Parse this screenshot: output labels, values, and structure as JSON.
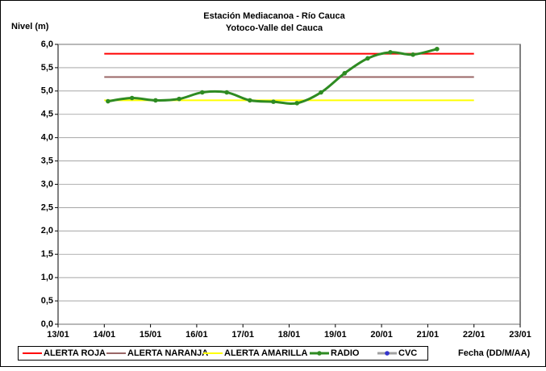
{
  "chart_data": {
    "type": "line",
    "title": "Estación Mediacanoa - Río Cauca",
    "subtitle": "Yotoco-Valle del Cauca",
    "y_label": "Nivel (m)",
    "x_label": "Fecha (DD/M/AA)",
    "xlim": [
      13,
      23
    ],
    "xticks": [
      {
        "value": 13,
        "label": "13/01"
      },
      {
        "value": 14,
        "label": "14/01"
      },
      {
        "value": 15,
        "label": "15/01"
      },
      {
        "value": 16,
        "label": "16/01"
      },
      {
        "value": 17,
        "label": "17/01"
      },
      {
        "value": 18,
        "label": "18/01"
      },
      {
        "value": 19,
        "label": "19/01"
      },
      {
        "value": 20,
        "label": "20/01"
      },
      {
        "value": 21,
        "label": "21/01"
      },
      {
        "value": 22,
        "label": "22/01"
      },
      {
        "value": 23,
        "label": "23/01"
      }
    ],
    "ylim": [
      0,
      6
    ],
    "yticks": [
      {
        "value": 0,
        "label": "0,0"
      },
      {
        "value": 0.5,
        "label": "0,5"
      },
      {
        "value": 1,
        "label": "1,0"
      },
      {
        "value": 1.5,
        "label": "1,5"
      },
      {
        "value": 2,
        "label": "2,0"
      },
      {
        "value": 2.5,
        "label": "2,5"
      },
      {
        "value": 3,
        "label": "3,0"
      },
      {
        "value": 3.5,
        "label": "3,5"
      },
      {
        "value": 4,
        "label": "4,0"
      },
      {
        "value": 4.5,
        "label": "4,5"
      },
      {
        "value": 5,
        "label": "5,0"
      },
      {
        "value": 5.5,
        "label": "5,5"
      },
      {
        "value": 6,
        "label": "6,0"
      }
    ],
    "grid": true,
    "legend": "bottom",
    "series": [
      {
        "name": "ALERTA ROJA",
        "color": "#ff0000",
        "x": [
          14,
          22
        ],
        "values": [
          5.8,
          5.8
        ]
      },
      {
        "name": "ALERTA NARANJA",
        "color": "#996666",
        "x": [
          14,
          22
        ],
        "values": [
          5.3,
          5.3
        ]
      },
      {
        "name": "ALERTA AMARILLA",
        "color": "#ffff00",
        "x": [
          14,
          22
        ],
        "values": [
          4.8,
          4.8
        ]
      },
      {
        "name": "RADIO",
        "color": "#2e8b22",
        "marker": true,
        "smooth": true,
        "x": [
          14.08,
          14.6,
          15.11,
          15.62,
          16.12,
          16.65,
          17.15,
          17.66,
          18.17,
          18.69,
          19.2,
          19.7,
          20.19,
          20.68,
          21.2
        ],
        "values": [
          4.78,
          4.85,
          4.8,
          4.83,
          4.97,
          4.97,
          4.8,
          4.77,
          4.74,
          4.97,
          5.38,
          5.7,
          5.83,
          5.78,
          5.9
        ]
      },
      {
        "name": "CVC",
        "color": "#a0a0a0",
        "marker": true,
        "marker_color": "#3333cc",
        "x": [],
        "values": []
      }
    ]
  }
}
